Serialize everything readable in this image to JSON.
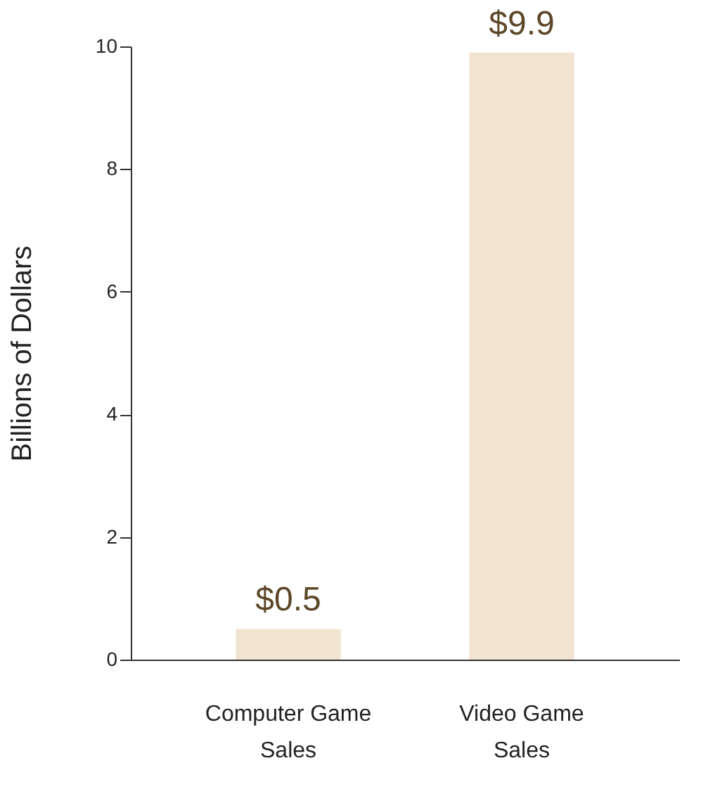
{
  "chart_data": {
    "type": "bar",
    "ylabel": "Billions of Dollars",
    "categories": [
      "Computer Game Sales",
      "Video Game Sales"
    ],
    "values": [
      0.5,
      9.9
    ],
    "value_labels": [
      "$0.5",
      "$9.9"
    ],
    "color": "#f1e4d1",
    "ylim": [
      0,
      10
    ],
    "yticks": [
      0,
      2,
      4,
      6,
      8,
      10
    ],
    "grid": false
  }
}
